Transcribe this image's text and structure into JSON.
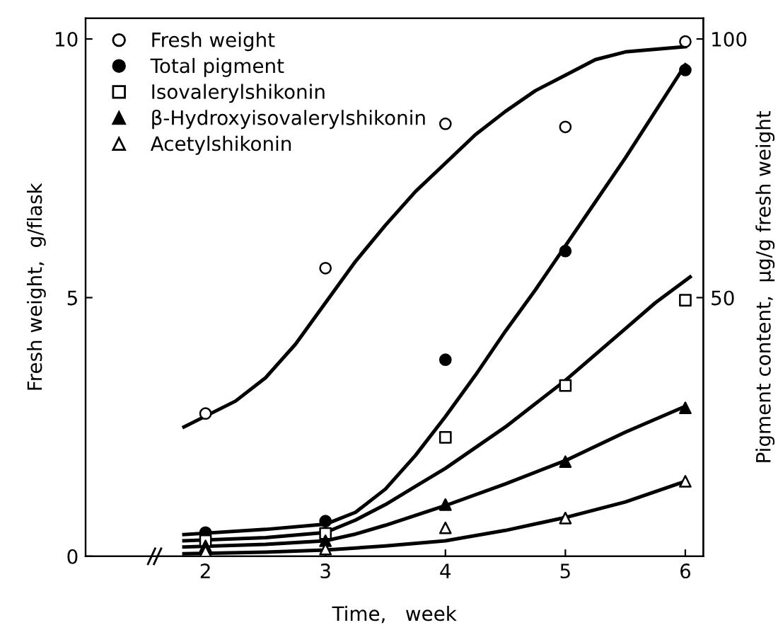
{
  "chart_data": {
    "type": "scatter",
    "xlabel": "Time,   week",
    "ylabel": "Fresh weight,  g/flask",
    "y2label": "Pigment content,  μg/g fresh weight",
    "xlim": [
      1.0,
      6.15
    ],
    "xticks": [
      2,
      3,
      4,
      5,
      6
    ],
    "ylim": [
      0,
      10.4
    ],
    "yticks": [
      0,
      5,
      10
    ],
    "y2lim": [
      0,
      104
    ],
    "y2ticks": [
      50,
      100
    ],
    "legend": "top left",
    "grid": false,
    "series": [
      {
        "name": "Fresh weight",
        "color": "#000000",
        "marker": "circle",
        "colors": [
          "#ffffff",
          "#ffffff",
          "#ffffff",
          "#ffffff",
          "#ffffff"
        ],
        "x": [
          2,
          3,
          4,
          5,
          6
        ],
        "values": [
          2.76,
          5.57,
          8.36,
          8.3,
          9.95
        ]
      },
      {
        "name": "Total pigment",
        "color": "#000000",
        "marker": "circle",
        "axis": "y2",
        "x": [
          2,
          3,
          4,
          5,
          6
        ],
        "values": [
          4.6,
          6.8,
          38,
          59,
          94
        ]
      },
      {
        "name": "Isovalerylshikonin",
        "color": "#000000",
        "marker": "square",
        "colors": [
          "#ffffff",
          "#ffffff",
          "#ffffff",
          "#ffffff",
          "#ffffff"
        ],
        "axis": "y2",
        "x": [
          2,
          3,
          4,
          5,
          6
        ],
        "values": [
          3,
          4.4,
          23,
          33,
          49.5
        ]
      },
      {
        "name": "β-Hydroxyisovalerylshikonin",
        "color": "#000000",
        "marker": "triangle",
        "axis": "y2",
        "x": [
          2,
          3,
          4,
          5,
          6
        ],
        "values": [
          2,
          3,
          10,
          18.3,
          28.7
        ]
      },
      {
        "name": "Acetylshikonin",
        "color": "#000000",
        "marker": "triangle",
        "colors": [
          "#ffffff",
          "#ffffff",
          "#ffffff",
          "#ffffff",
          "#ffffff"
        ],
        "axis": "y2",
        "x": [
          2,
          3,
          4,
          5,
          6
        ],
        "values": [
          1,
          1.4,
          5.5,
          7.4,
          14.5
        ]
      },
      {
        "type": "line",
        "color": "#000000",
        "x": [
          1.82,
          2.25,
          2.5,
          2.75,
          3,
          3.25,
          3.5,
          3.75,
          4,
          4.25,
          4.5,
          4.75,
          5,
          5.25,
          5.5,
          6
        ],
        "values": [
          2.5,
          3.0,
          3.45,
          4.1,
          4.9,
          5.7,
          6.4,
          7.05,
          7.6,
          8.15,
          8.6,
          9.0,
          9.3,
          9.6,
          9.75,
          9.85
        ]
      },
      {
        "type": "line",
        "color": "#000000",
        "axis": "y2",
        "x": [
          1.82,
          2.5,
          3,
          3.25,
          3.5,
          3.75,
          4,
          4.25,
          4.5,
          4.75,
          5,
          5.25,
          5.5,
          5.75,
          6
        ],
        "values": [
          4.2,
          5.2,
          6.2,
          8.5,
          13,
          19.5,
          27,
          35,
          43.5,
          51.5,
          60,
          68.5,
          77,
          86,
          95
        ]
      },
      {
        "type": "line",
        "color": "#000000",
        "axis": "y2",
        "x": [
          1.82,
          2.5,
          3,
          3.25,
          3.5,
          3.75,
          4,
          4.25,
          4.5,
          4.75,
          5,
          5.25,
          5.5,
          5.75,
          6.04
        ],
        "values": [
          3,
          3.6,
          4.6,
          7,
          10,
          13.5,
          17,
          21,
          25,
          29.5,
          34,
          39,
          44,
          49,
          54
        ]
      },
      {
        "type": "line",
        "color": "#000000",
        "axis": "y2",
        "x": [
          1.82,
          2.5,
          3,
          3.25,
          3.5,
          3.75,
          4,
          4.5,
          5,
          5.5,
          6
        ],
        "values": [
          1.8,
          2.3,
          3,
          4.3,
          6,
          7.9,
          9.8,
          14,
          18.5,
          24,
          29
        ]
      },
      {
        "type": "line",
        "color": "#000000",
        "axis": "y2",
        "x": [
          1.82,
          2.5,
          3,
          3.5,
          4,
          4.5,
          5,
          5.5,
          6
        ],
        "values": [
          0.5,
          0.8,
          1.2,
          2,
          3,
          5,
          7.5,
          10.5,
          14.5
        ]
      }
    ]
  }
}
